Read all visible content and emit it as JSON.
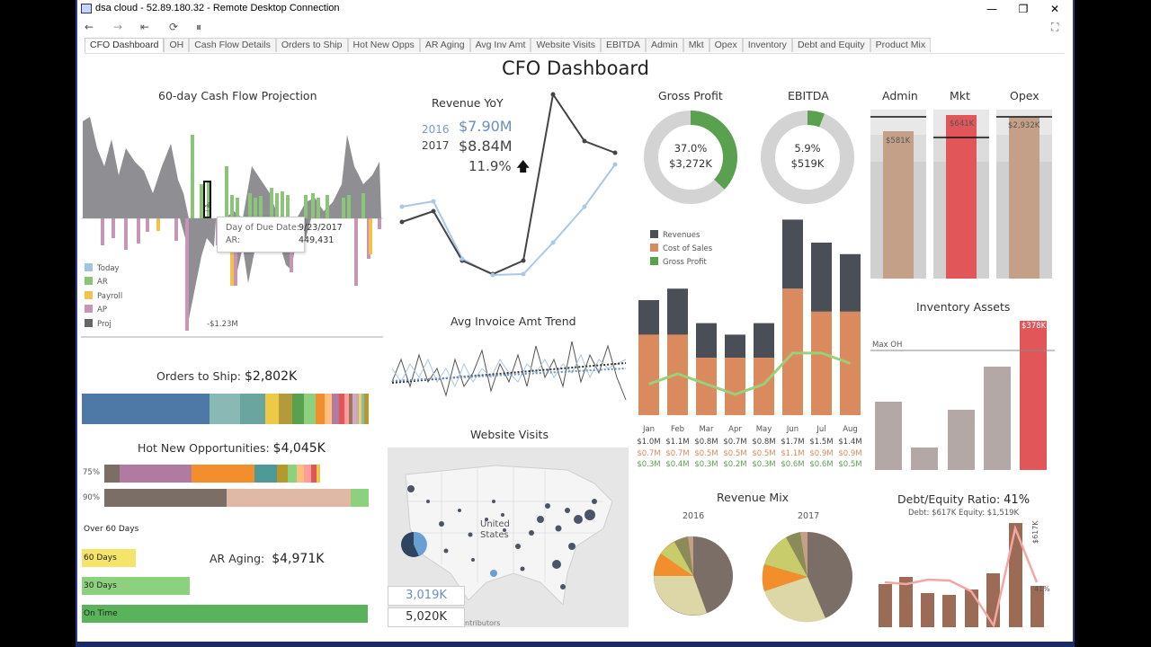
{
  "window": {
    "title": "dsa cloud - 52.89.180.32 - Remote Desktop Connection",
    "minimize": "—",
    "restore": "❐",
    "close": "✕"
  },
  "toolbar": {
    "back": "←",
    "forward": "→",
    "first": "⇤",
    "refresh": "⟳",
    "pause": "⏸",
    "fullscreen": "⛶"
  },
  "tabs": [
    "CFO Dashboard",
    "OH",
    "Cash Flow Details",
    "Orders to Ship",
    "Hot New Opps",
    "AR Aging",
    "Avg Inv Amt",
    "Website Visits",
    "EBITDA",
    "Admin",
    "Mkt",
    "Opex",
    "Inventory",
    "Debt and Equity",
    "Product Mix"
  ],
  "active_tab": "CFO Dashboard",
  "dashboard_title": "CFO Dashboard",
  "cash_flow": {
    "title": "60-day Cash Flow Projection",
    "legend": [
      "Today",
      "AR",
      "Payroll",
      "AP",
      "Proj"
    ],
    "min_label": "-$1.23M",
    "tooltip": {
      "date_key": "Day of Due Date:",
      "date_val": "9/23/2017",
      "ar_key": "AR:",
      "ar_val": "449,431"
    }
  },
  "revenue_yoy": {
    "title": "Revenue YoY",
    "year1": "2016",
    "val1": "$7.90M",
    "year2": "2017",
    "val2": "$8.84M",
    "growth": "11.9%",
    "arrow": "🡅"
  },
  "gross_profit": {
    "title": "Gross Profit",
    "pct": "37.0%",
    "amount": "$3,272K",
    "fraction": 0.37
  },
  "ebitda": {
    "title": "EBITDA",
    "pct": "5.9%",
    "amount": "$519K",
    "fraction": 0.059
  },
  "budget": [
    {
      "title": "Admin",
      "value": "$581K"
    },
    {
      "title": "Mkt",
      "value": "$641K"
    },
    {
      "title": "Opex",
      "value": "$2,932K"
    }
  ],
  "monthly": {
    "legend": [
      "Revenues",
      "Cost of Sales",
      "Gross Profit"
    ],
    "months": [
      "Jan",
      "Feb",
      "Mar",
      "Apr",
      "May",
      "Jun",
      "Jul",
      "Aug"
    ],
    "revenues": [
      "$1.0M",
      "$1.1M",
      "$0.8M",
      "$0.7M",
      "$0.8M",
      "$1.7M",
      "$1.5M",
      "$1.4M"
    ],
    "cost_of_sales": [
      "$0.7M",
      "$0.7M",
      "$0.5M",
      "$0.5M",
      "$0.5M",
      "$1.1M",
      "$0.9M",
      "$0.9M"
    ],
    "gross_profit": [
      "$0.3M",
      "$0.4M",
      "$0.3M",
      "$0.2M",
      "$0.3M",
      "$0.6M",
      "$0.6M",
      "$0.5M"
    ]
  },
  "chart_data": {
    "type": "bar",
    "categories": [
      "Jan",
      "Feb",
      "Mar",
      "Apr",
      "May",
      "Jun",
      "Jul",
      "Aug"
    ],
    "series": [
      {
        "name": "Revenues",
        "values": [
          1.0,
          1.1,
          0.8,
          0.7,
          0.8,
          1.7,
          1.5,
          1.4
        ]
      },
      {
        "name": "Cost of Sales",
        "values": [
          0.7,
          0.7,
          0.5,
          0.5,
          0.5,
          1.1,
          0.9,
          0.9
        ]
      },
      {
        "name": "Gross Profit",
        "values": [
          0.3,
          0.4,
          0.3,
          0.2,
          0.3,
          0.6,
          0.6,
          0.5
        ]
      }
    ]
  },
  "inventory": {
    "title": "Inventory Assets",
    "max_label": "Max OH",
    "top_value": "$378K"
  },
  "orders_to_ship": {
    "title": "Orders to Ship:",
    "value": "$2,802K"
  },
  "hot_opps": {
    "title": "Hot New Opportunities:",
    "value": "$4,045K",
    "row1": "75%",
    "row2": "90%"
  },
  "ar_aging": {
    "title": "AR Aging:",
    "value": "$4,971K",
    "buckets": [
      "Over 60 Days",
      "60 Days",
      "30 Days",
      "On Time"
    ]
  },
  "avg_invoice": {
    "title": "Avg Invoice Amt Trend"
  },
  "website": {
    "title": "Website Visits",
    "map_label1": "United",
    "map_label2": "States",
    "kpi1": "3,019K",
    "kpi2": "5,020K",
    "attribution": "ntributors"
  },
  "revenue_mix": {
    "title": "Revenue Mix",
    "year1": "2016",
    "year2": "2017"
  },
  "debt_equity": {
    "title": "Debt/Equity Ratio:",
    "ratio": "41%",
    "debt": "Debt: $617K",
    "equity": "Equity: $1,519K",
    "bar_label": "$617K",
    "line_label": "41%"
  }
}
